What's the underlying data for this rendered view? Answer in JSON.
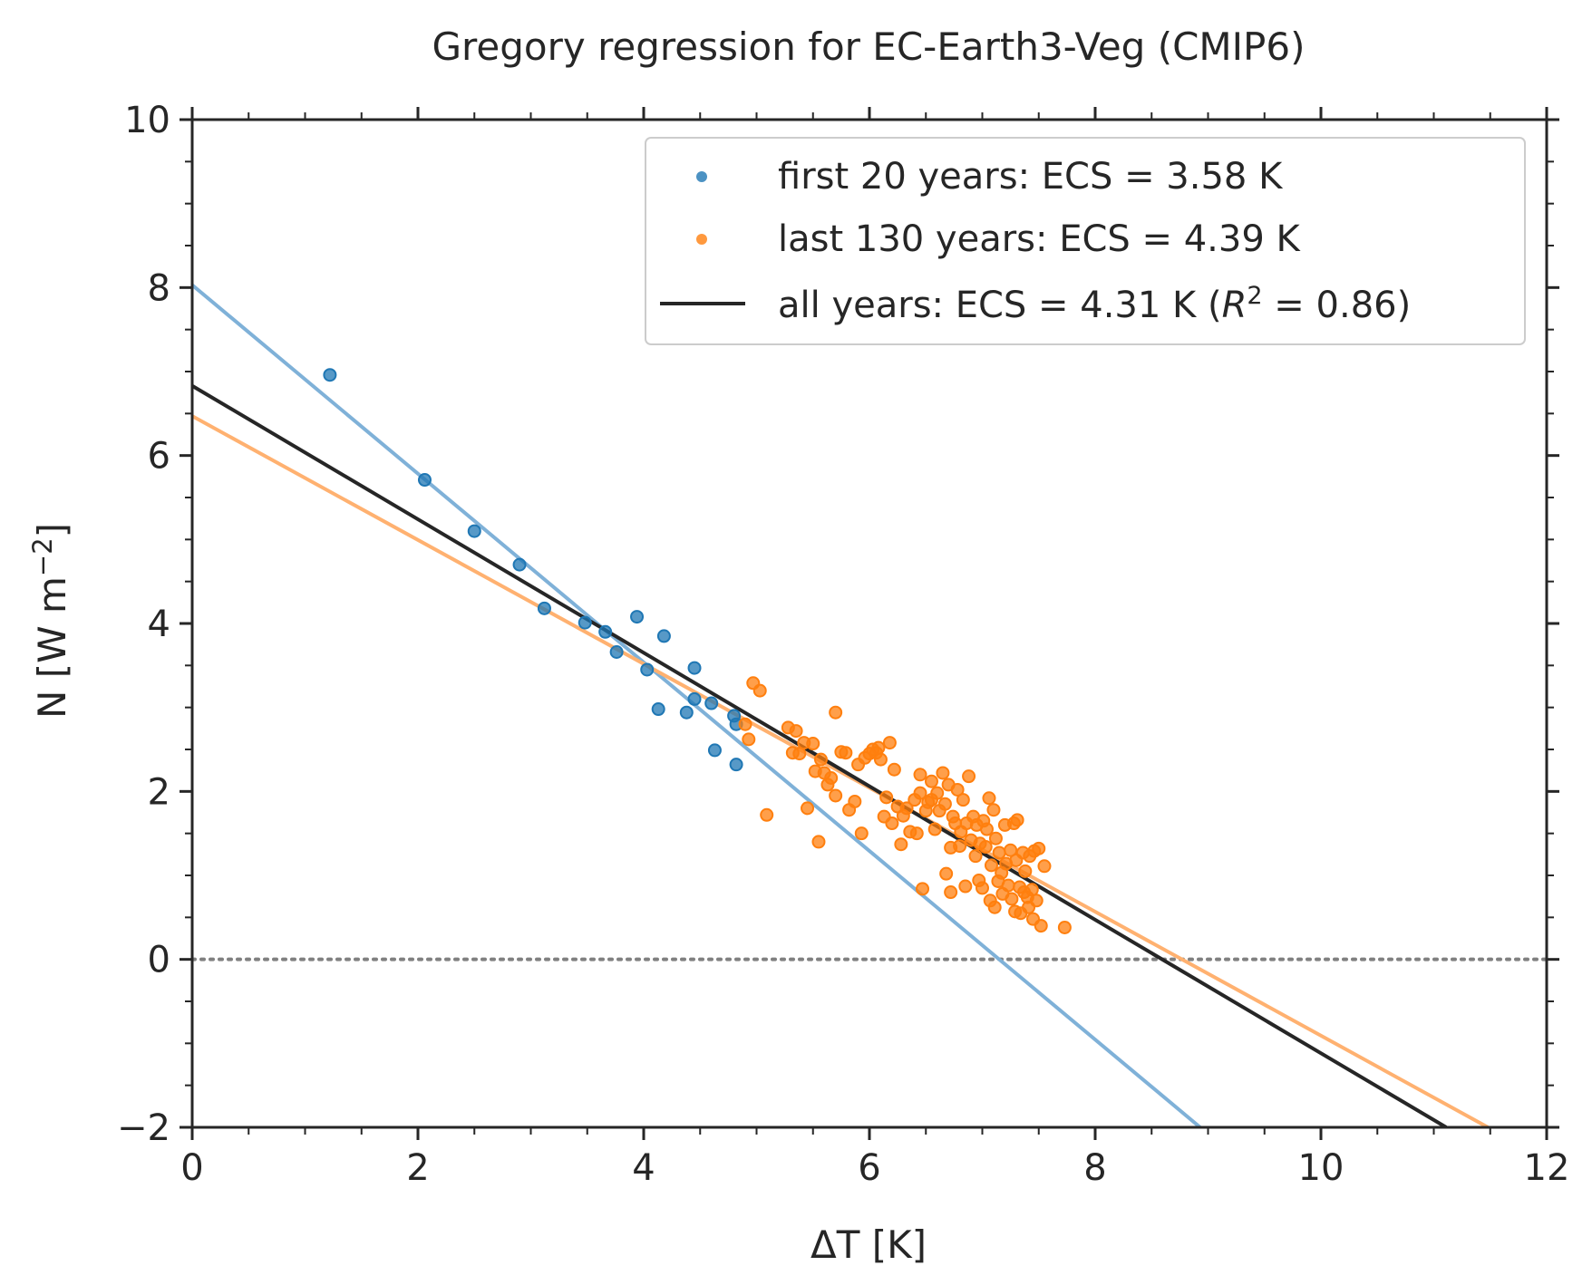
{
  "chart_data": {
    "type": "scatter",
    "title": "Gregory regression for EC-Earth3-Veg (CMIP6)",
    "xlabel": "ΔT [K]",
    "ylabel_main": "N [W m",
    "ylabel_sup": "−2",
    "ylabel_close": "]",
    "xlim": [
      0,
      12
    ],
    "ylim": [
      -2,
      10
    ],
    "x_ticks": [
      0,
      2,
      4,
      6,
      8,
      10,
      12
    ],
    "x_tick_labels": [
      "0",
      "2",
      "4",
      "6",
      "8",
      "10",
      "12"
    ],
    "y_ticks": [
      -2,
      0,
      2,
      4,
      6,
      8,
      10
    ],
    "y_tick_labels": [
      "−2",
      "0",
      "2",
      "4",
      "6",
      "8",
      "10"
    ],
    "grid": false,
    "legend_position": "top-right",
    "zero_line": {
      "y": 0,
      "color": "#808080",
      "style": "dotted"
    },
    "series": [
      {
        "name": "first 20 years: ECS = 3.58 K",
        "kind": "scatter",
        "color": "#1f77b4",
        "points": [
          [
            1.22,
            6.96
          ],
          [
            2.06,
            5.71
          ],
          [
            2.5,
            5.1
          ],
          [
            2.9,
            4.7
          ],
          [
            3.12,
            4.18
          ],
          [
            3.48,
            4.01
          ],
          [
            3.66,
            3.9
          ],
          [
            3.76,
            3.66
          ],
          [
            3.94,
            4.08
          ],
          [
            4.03,
            3.45
          ],
          [
            4.13,
            2.98
          ],
          [
            4.18,
            3.85
          ],
          [
            4.38,
            2.94
          ],
          [
            4.45,
            3.47
          ],
          [
            4.45,
            3.1
          ],
          [
            4.6,
            3.05
          ],
          [
            4.63,
            2.49
          ],
          [
            4.8,
            2.9
          ],
          [
            4.82,
            2.8
          ],
          [
            4.82,
            2.32
          ]
        ]
      },
      {
        "name": "last 130 years: ECS = 4.39 K",
        "kind": "scatter",
        "color": "#ff7f0e",
        "points": [
          [
            4.9,
            2.8
          ],
          [
            4.93,
            2.62
          ],
          [
            4.97,
            3.29
          ],
          [
            5.03,
            3.2
          ],
          [
            5.09,
            1.72
          ],
          [
            5.28,
            2.76
          ],
          [
            5.32,
            2.46
          ],
          [
            5.35,
            2.72
          ],
          [
            5.38,
            2.45
          ],
          [
            5.42,
            2.58
          ],
          [
            5.45,
            1.8
          ],
          [
            5.5,
            2.57
          ],
          [
            5.52,
            2.24
          ],
          [
            5.55,
            1.4
          ],
          [
            5.57,
            2.38
          ],
          [
            5.6,
            2.22
          ],
          [
            5.63,
            2.08
          ],
          [
            5.66,
            2.16
          ],
          [
            5.7,
            2.94
          ],
          [
            5.7,
            1.95
          ],
          [
            5.75,
            2.47
          ],
          [
            5.79,
            2.46
          ],
          [
            5.82,
            1.78
          ],
          [
            5.87,
            1.88
          ],
          [
            5.9,
            2.32
          ],
          [
            5.93,
            1.5
          ],
          [
            5.96,
            2.4
          ],
          [
            6.0,
            2.45
          ],
          [
            6.03,
            2.5
          ],
          [
            6.06,
            2.46
          ],
          [
            6.08,
            2.52
          ],
          [
            6.1,
            2.38
          ],
          [
            6.13,
            1.7
          ],
          [
            6.15,
            1.93
          ],
          [
            6.18,
            2.58
          ],
          [
            6.2,
            1.62
          ],
          [
            6.22,
            2.26
          ],
          [
            6.25,
            1.82
          ],
          [
            6.28,
            1.37
          ],
          [
            6.3,
            1.71
          ],
          [
            6.33,
            1.8
          ],
          [
            6.36,
            1.52
          ],
          [
            6.4,
            1.9
          ],
          [
            6.42,
            1.5
          ],
          [
            6.45,
            2.2
          ],
          [
            6.45,
            1.98
          ],
          [
            6.47,
            0.84
          ],
          [
            6.5,
            1.77
          ],
          [
            6.52,
            1.87
          ],
          [
            6.55,
            2.12
          ],
          [
            6.55,
            1.9
          ],
          [
            6.58,
            1.55
          ],
          [
            6.6,
            1.98
          ],
          [
            6.62,
            1.77
          ],
          [
            6.65,
            2.22
          ],
          [
            6.67,
            1.85
          ],
          [
            6.68,
            1.02
          ],
          [
            6.7,
            2.08
          ],
          [
            6.72,
            0.8
          ],
          [
            6.72,
            1.33
          ],
          [
            6.74,
            1.7
          ],
          [
            6.76,
            1.62
          ],
          [
            6.78,
            2.02
          ],
          [
            6.8,
            1.35
          ],
          [
            6.81,
            1.52
          ],
          [
            6.83,
            1.9
          ],
          [
            6.85,
            0.87
          ],
          [
            6.86,
            1.62
          ],
          [
            6.88,
            2.18
          ],
          [
            6.9,
            1.42
          ],
          [
            6.92,
            1.7
          ],
          [
            6.94,
            1.23
          ],
          [
            6.95,
            1.6
          ],
          [
            6.97,
            0.94
          ],
          [
            6.98,
            1.38
          ],
          [
            7.0,
            0.85
          ],
          [
            7.01,
            1.65
          ],
          [
            7.03,
            1.34
          ],
          [
            7.04,
            1.55
          ],
          [
            7.06,
            1.92
          ],
          [
            7.07,
            0.7
          ],
          [
            7.08,
            1.12
          ],
          [
            7.1,
            1.78
          ],
          [
            7.11,
            0.62
          ],
          [
            7.12,
            1.44
          ],
          [
            7.14,
            0.93
          ],
          [
            7.15,
            1.27
          ],
          [
            7.17,
            1.03
          ],
          [
            7.18,
            0.78
          ],
          [
            7.2,
            1.6
          ],
          [
            7.21,
            1.14
          ],
          [
            7.23,
            0.88
          ],
          [
            7.25,
            1.3
          ],
          [
            7.26,
            0.72
          ],
          [
            7.28,
            1.62
          ],
          [
            7.29,
            0.57
          ],
          [
            7.3,
            1.18
          ],
          [
            7.31,
            1.66
          ],
          [
            7.33,
            0.86
          ],
          [
            7.34,
            0.55
          ],
          [
            7.36,
            1.27
          ],
          [
            7.37,
            0.8
          ],
          [
            7.38,
            1.05
          ],
          [
            7.4,
            0.74
          ],
          [
            7.41,
            0.62
          ],
          [
            7.42,
            1.23
          ],
          [
            7.44,
            0.83
          ],
          [
            7.45,
            0.48
          ],
          [
            7.46,
            1.29
          ],
          [
            7.48,
            0.7
          ],
          [
            7.5,
            1.32
          ],
          [
            7.52,
            0.4
          ],
          [
            7.55,
            1.11
          ],
          [
            7.73,
            0.38
          ]
        ]
      },
      {
        "name": "all years: ECS = 4.31 K (",
        "legend_math": "R",
        "legend_sup": "2",
        "legend_tail": " = 0.86)",
        "kind": "line",
        "color": "#262626",
        "x": [
          0,
          11.11
        ],
        "y": [
          6.83,
          -2.0
        ]
      }
    ],
    "regression_lines": [
      {
        "color": "#7fb1d8",
        "x": [
          0,
          8.93
        ],
        "y": [
          8.03,
          -2.0
        ]
      },
      {
        "color": "#ffb170",
        "x": [
          0,
          11.48
        ],
        "y": [
          6.47,
          -2.0
        ]
      }
    ]
  }
}
